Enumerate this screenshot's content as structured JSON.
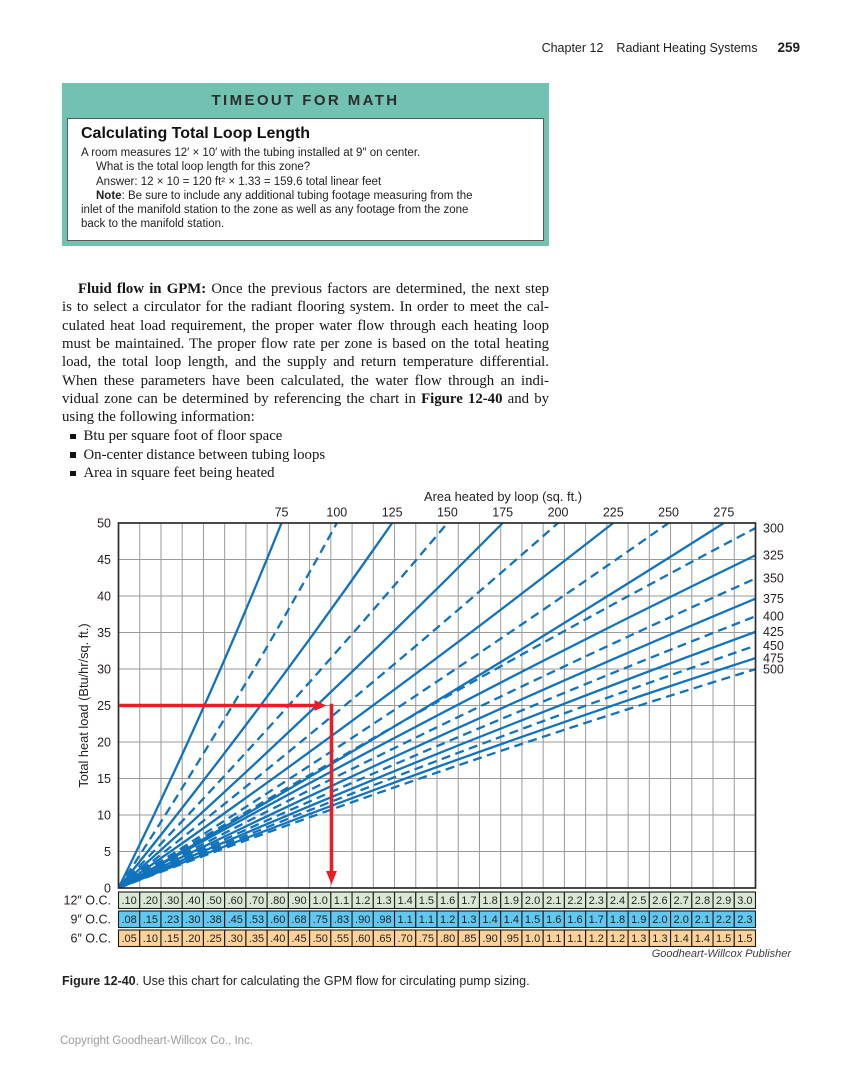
{
  "colors": {
    "teal": "#72c2b2",
    "red_guide": "#ec1c24",
    "blue_line": "#1173bc",
    "grid": "#9a9a9a",
    "plot_border": "#2b2b2b",
    "table_green": "#d7e9d2",
    "table_blue": "#5fc9f1",
    "table_orange": "#fbd29a"
  },
  "page_header": {
    "chapter": "Chapter 12",
    "section": "Radiant Heating Systems",
    "page_number": "259"
  },
  "timeout_box": {
    "banner": "TIMEOUT FOR MATH",
    "title": "Calculating Total Loop Length",
    "lines": [
      {
        "seg": [
          "A room measures 12′ × 10′ with the tubing installed at 9″ on center."
        ]
      },
      {
        "seg": [
          "What is the total loop length for this zone?"
        ],
        "ind": true
      },
      {
        "seg": [
          "Answer: 12 × 10 = 120 ft² × 1.33 = 159.6 total linear feet"
        ],
        "ind": true
      },
      {
        "seg": [
          {
            "t": "Note",
            "b": true
          },
          ": Be sure to include any additional tubing footage measuring from the"
        ],
        "ind": true
      },
      {
        "seg": [
          "inlet of the manifold station to the zone as well as any footage from the zone"
        ]
      },
      {
        "seg": [
          "back to the manifold station."
        ]
      }
    ]
  },
  "article": {
    "lines": [
      {
        "seg": [
          {
            "t": "Fluid flow in GPM:",
            "b": true
          },
          " Once the previous factors are determined, the next step"
        ],
        "just": true,
        "firstind": true
      },
      {
        "seg": [
          "is to select a circulator for the radiant flooring system. In order to meet the cal-"
        ],
        "just": true
      },
      {
        "seg": [
          "culated heat load requirement, the proper water flow through each heating loop"
        ],
        "just": true
      },
      {
        "seg": [
          "must be maintained. The proper flow rate per zone is based on the total heating"
        ],
        "just": true
      },
      {
        "seg": [
          "load, the total loop length, and the supply and return temperature differential."
        ],
        "just": true
      },
      {
        "seg": [
          "When these parameters have been calculated, the water flow through an indi-"
        ],
        "just": true
      },
      {
        "seg": [
          "vidual zone can be determined by referencing the chart in ",
          {
            "t": "Figure 12-40",
            "b": true
          },
          " and by"
        ],
        "just": true
      },
      {
        "seg": [
          "using the following information:"
        ]
      }
    ],
    "bullets": [
      "Btu per square foot of floor space",
      "On-center distance between tubing loops",
      "Area in square feet being heated"
    ]
  },
  "figure": {
    "attribution": "Goodheart-Willcox Publisher",
    "caption": [
      {
        "seg": [
          {
            "t": "Figure 12-40",
            "b": true
          },
          ". Use this chart for calculating the GPM flow for circulating pump sizing."
        ]
      }
    ]
  },
  "footer": {
    "copyright": "Copyright Goodheart-Willcox Co., Inc."
  },
  "chart_data": {
    "type": "line",
    "top_axis": {
      "title": "Area heated by loop (sq. ft.)",
      "ticks": [
        75,
        100,
        125,
        150,
        175,
        200,
        225,
        250,
        275
      ]
    },
    "right_axis_labels": [
      300,
      325,
      350,
      375,
      400,
      425,
      450,
      475,
      500
    ],
    "y_axis": {
      "title": "Total heat load (Btu/hr/sq. ft.)",
      "ticks": [
        50,
        45,
        40,
        35,
        30,
        25,
        20,
        15,
        10,
        5,
        0
      ],
      "range": [
        0,
        50
      ]
    },
    "iso_area_lines": [
      {
        "area": 75,
        "style": "solid"
      },
      {
        "area": 100,
        "style": "dashed"
      },
      {
        "area": 125,
        "style": "solid"
      },
      {
        "area": 150,
        "style": "dashed"
      },
      {
        "area": 175,
        "style": "solid"
      },
      {
        "area": 200,
        "style": "dashed"
      },
      {
        "area": 225,
        "style": "solid"
      },
      {
        "area": 250,
        "style": "dashed"
      },
      {
        "area": 275,
        "style": "solid"
      },
      {
        "area": 300,
        "style": "dashed"
      },
      {
        "area": 325,
        "style": "solid"
      },
      {
        "area": 350,
        "style": "dashed"
      },
      {
        "area": 375,
        "style": "solid"
      },
      {
        "area": 400,
        "style": "dashed"
      },
      {
        "area": 425,
        "style": "solid"
      },
      {
        "area": 450,
        "style": "dashed"
      },
      {
        "area": 475,
        "style": "solid"
      },
      {
        "area": 500,
        "style": "dashed"
      }
    ],
    "example_guide": {
      "heat_load": 25,
      "drops_to_gpm_column": "1.0"
    },
    "grid": true,
    "gpm_table": {
      "rows": [
        {
          "label": "12″ O.C.",
          "bg": "#d7e9d2",
          "values": [
            ".10",
            ".20",
            ".30",
            ".40",
            ".50",
            ".60",
            ".70",
            ".80",
            ".90",
            "1.0",
            "1.1",
            "1.2",
            "1.3",
            "1.4",
            "1.5",
            "1.6",
            "1.7",
            "1.8",
            "1.9",
            "2.0",
            "2.1",
            "2.2",
            "2.3",
            "2.4",
            "2.5",
            "2.6",
            "2.7",
            "2.8",
            "2.9",
            "3.0"
          ]
        },
        {
          "label": "9″ O.C.",
          "bg": "#5fc9f1",
          "values": [
            ".08",
            ".15",
            ".23",
            ".30",
            ".38",
            ".45",
            ".53",
            ".60",
            ".68",
            ".75",
            ".83",
            ".90",
            ".98",
            "1.1",
            "1.1",
            "1.2",
            "1.3",
            "1.4",
            "1.4",
            "1.5",
            "1.6",
            "1.6",
            "1.7",
            "1.8",
            "1.9",
            "2.0",
            "2.0",
            "2.1",
            "2.2",
            "2.3"
          ]
        },
        {
          "label": "6″ O.C.",
          "bg": "#fbd29a",
          "values": [
            ".05",
            ".10",
            ".15",
            ".20",
            ".25",
            ".30",
            ".35",
            ".40",
            ".45",
            ".50",
            ".55",
            ".60",
            ".65",
            ".70",
            ".75",
            ".80",
            ".85",
            ".90",
            ".95",
            "1.0",
            "1.1",
            "1.1",
            "1.2",
            "1.2",
            "1.3",
            "1.3",
            "1.4",
            "1.4",
            "1.5",
            "1.5"
          ]
        }
      ]
    }
  }
}
